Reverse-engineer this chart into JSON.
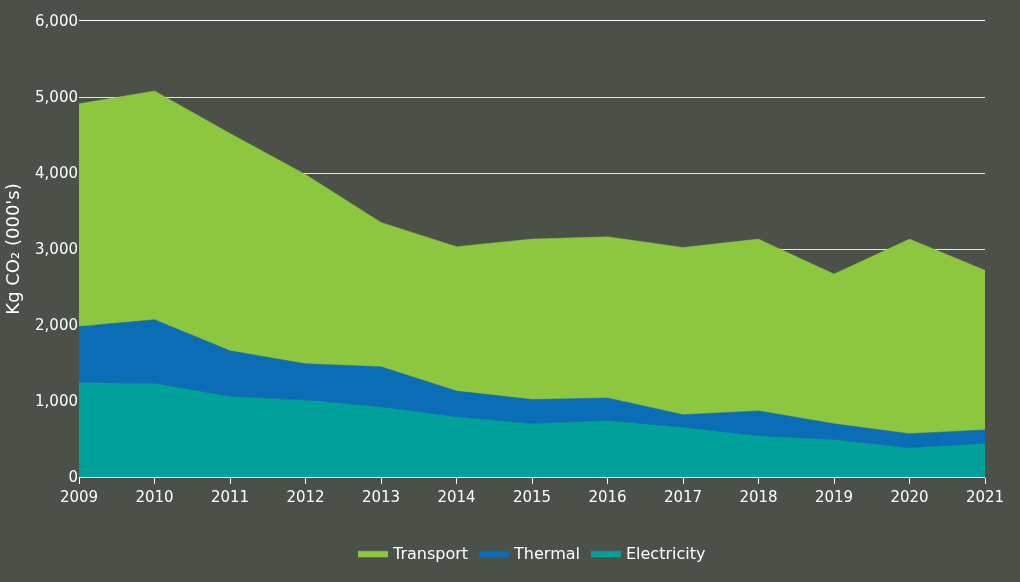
{
  "chart_data": {
    "type": "area",
    "stacked": true,
    "ylabel": "Kg CO₂ (000's)",
    "categories": [
      "2009",
      "2010",
      "2011",
      "2012",
      "2013",
      "2014",
      "2015",
      "2016",
      "2017",
      "2018",
      "2019",
      "2020",
      "2021"
    ],
    "series": [
      {
        "name": "Electricity",
        "color": "#00a19a",
        "values": [
          1240,
          1230,
          1060,
          1010,
          920,
          790,
          700,
          740,
          650,
          540,
          490,
          380,
          440
        ]
      },
      {
        "name": "Thermal",
        "color": "#0a6db5",
        "values": [
          740,
          840,
          600,
          480,
          530,
          340,
          320,
          300,
          170,
          330,
          210,
          190,
          180
        ]
      },
      {
        "name": "Transport",
        "color": "#8dc63f",
        "values": [
          2930,
          3010,
          2860,
          2490,
          1900,
          1900,
          2110,
          2120,
          2200,
          2260,
          1970,
          2560,
          2100
        ]
      }
    ],
    "ylim": [
      0,
      6000
    ],
    "yticks": [
      0,
      {
        "value": 1000,
        "label": "1,000"
      },
      {
        "value": 2000,
        "label": "2,000"
      },
      {
        "value": 3000,
        "label": "3,000"
      },
      {
        "value": 4000,
        "label": "4,000"
      },
      {
        "value": 5000,
        "label": "5,000"
      },
      {
        "value": 6000,
        "label": "6,000"
      }
    ],
    "grid": "y",
    "legend": "bottom"
  }
}
